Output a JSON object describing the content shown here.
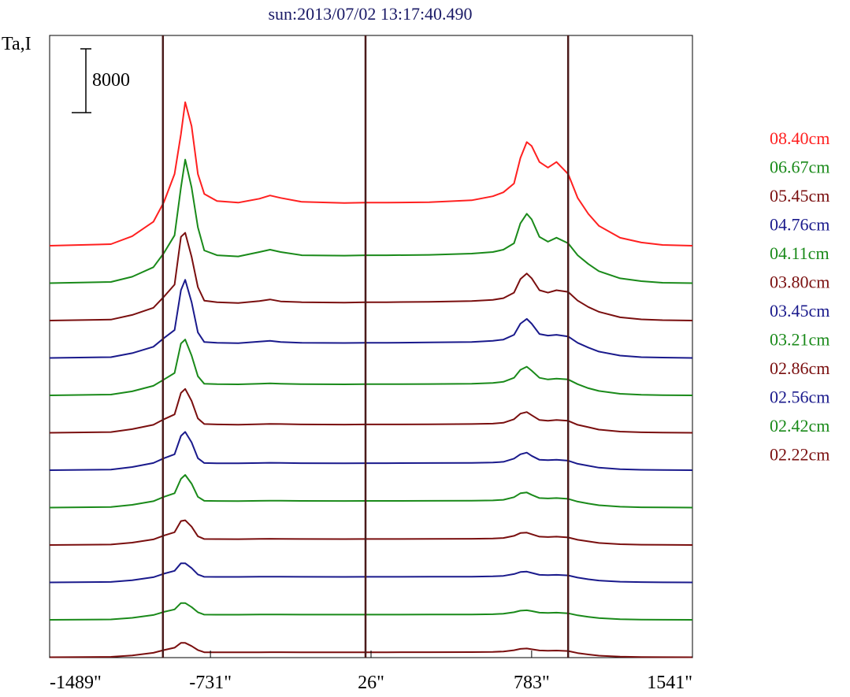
{
  "chart_data": {
    "type": "line",
    "title": "sun:2013/07/02 13:17:40.490",
    "ylabel": "Ta,I",
    "scale_bar_label": "8000",
    "x_ticks": [
      -1489,
      -731,
      26,
      783,
      1541
    ],
    "x_tick_labels": [
      "-1489\"",
      "-731\"",
      "26\"",
      "783\"",
      "1541\""
    ],
    "xlim": [
      -1489,
      1541
    ],
    "vertical_markers": [
      -955,
      0,
      955
    ],
    "grid": false,
    "legend_placement": "right",
    "colors": {
      "red": "#ff2020",
      "green": "#1a8a1a",
      "darkred": "#7a0f0f",
      "navy": "#1a1a8c",
      "marker": "#4a1a1a",
      "title": "#1a1a66"
    },
    "x": [
      -1489,
      -1200,
      -1100,
      -1000,
      -950,
      -900,
      -870,
      -850,
      -820,
      -790,
      -760,
      -700,
      -600,
      -500,
      -450,
      -400,
      -300,
      -100,
      0,
      100,
      300,
      500,
      600,
      650,
      700,
      730,
      760,
      783,
      820,
      860,
      900,
      955,
      1000,
      1050,
      1100,
      1200,
      1300,
      1400,
      1541
    ],
    "series": [
      {
        "name": "08.40cm",
        "color": "red",
        "values": [
          0,
          200,
          1200,
          3000,
          5500,
          9000,
          14000,
          18000,
          15000,
          9000,
          6500,
          5600,
          5400,
          5900,
          6300,
          6000,
          5500,
          5350,
          5400,
          5400,
          5450,
          5700,
          6200,
          6700,
          7800,
          11000,
          13000,
          12500,
          10500,
          9800,
          10500,
          9000,
          6000,
          4000,
          2500,
          1000,
          400,
          100,
          0
        ]
      },
      {
        "name": "06.67cm",
        "color": "green",
        "values": [
          0,
          150,
          800,
          2000,
          3800,
          6000,
          12000,
          15500,
          12000,
          7000,
          4100,
          3500,
          3350,
          3900,
          4200,
          3900,
          3500,
          3450,
          3500,
          3500,
          3550,
          3700,
          3900,
          4200,
          5000,
          7500,
          8700,
          8000,
          5800,
          5200,
          5700,
          5000,
          3500,
          2400,
          1500,
          600,
          250,
          50,
          0
        ]
      },
      {
        "name": "05.45cm",
        "color": "darkred",
        "values": [
          0,
          120,
          700,
          1600,
          3000,
          4500,
          10500,
          11000,
          8000,
          4200,
          2500,
          2300,
          2200,
          2450,
          2650,
          2400,
          2300,
          2250,
          2300,
          2300,
          2350,
          2450,
          2600,
          2800,
          3500,
          5200,
          5900,
          5300,
          3800,
          3500,
          3800,
          3600,
          2500,
          1700,
          1100,
          400,
          150,
          50,
          0
        ]
      },
      {
        "name": "04.76cm",
        "color": "navy",
        "values": [
          0,
          100,
          600,
          1400,
          2500,
          3500,
          8500,
          9800,
          7000,
          3200,
          2000,
          1900,
          1850,
          2050,
          2150,
          2000,
          1900,
          1880,
          1900,
          1900,
          1950,
          2000,
          2150,
          2300,
          2900,
          4300,
          4900,
          4300,
          3000,
          2800,
          2900,
          2700,
          1900,
          1300,
          800,
          300,
          100,
          50,
          0
        ]
      },
      {
        "name": "04.11cm",
        "color": "green",
        "values": [
          0,
          100,
          500,
          1200,
          2000,
          2800,
          6500,
          7000,
          5000,
          2400,
          1450,
          1400,
          1380,
          1450,
          1500,
          1450,
          1400,
          1380,
          1400,
          1400,
          1420,
          1450,
          1550,
          1700,
          2200,
          3200,
          3600,
          3100,
          2200,
          2000,
          2100,
          2000,
          1400,
          900,
          550,
          200,
          80,
          30,
          0
        ]
      },
      {
        "name": "03.80cm",
        "color": "darkred",
        "values": [
          0,
          90,
          450,
          1000,
          1700,
          2300,
          5000,
          5500,
          4000,
          1800,
          1100,
          1050,
          1020,
          1080,
          1120,
          1100,
          1050,
          1030,
          1050,
          1050,
          1070,
          1100,
          1150,
          1250,
          1700,
          2400,
          2600,
          2200,
          1600,
          1500,
          1600,
          1500,
          1000,
          700,
          400,
          150,
          60,
          20,
          0
        ]
      },
      {
        "name": "03.45cm",
        "color": "navy",
        "values": [
          0,
          80,
          400,
          900,
          1500,
          2000,
          4300,
          4800,
          3500,
          1500,
          900,
          870,
          860,
          900,
          930,
          910,
          880,
          870,
          880,
          880,
          900,
          920,
          960,
          1050,
          1450,
          2000,
          2200,
          1800,
          1300,
          1250,
          1300,
          1200,
          800,
          550,
          320,
          120,
          50,
          20,
          0
        ]
      },
      {
        "name": "03.21cm",
        "color": "green",
        "values": [
          0,
          70,
          350,
          800,
          1350,
          1800,
          3600,
          4100,
          3000,
          1350,
          850,
          830,
          820,
          850,
          870,
          860,
          840,
          830,
          840,
          840,
          850,
          870,
          900,
          980,
          1300,
          1800,
          1900,
          1600,
          1200,
          1150,
          1200,
          1100,
          750,
          500,
          300,
          110,
          40,
          15,
          0
        ]
      },
      {
        "name": "02.86cm",
        "color": "darkred",
        "values": [
          0,
          60,
          300,
          700,
          1200,
          1600,
          3000,
          3100,
          2300,
          1100,
          750,
          740,
          730,
          760,
          780,
          770,
          750,
          740,
          750,
          750,
          760,
          780,
          820,
          880,
          1150,
          1500,
          1550,
          1350,
          1050,
          1000,
          1050,
          950,
          650,
          450,
          260,
          100,
          40,
          15,
          0
        ]
      },
      {
        "name": "02.56cm",
        "color": "navy",
        "values": [
          0,
          55,
          270,
          650,
          1100,
          1450,
          2400,
          2400,
          1800,
          1000,
          700,
          690,
          690,
          710,
          720,
          715,
          700,
          695,
          700,
          700,
          710,
          720,
          760,
          820,
          1050,
          1300,
          1350,
          1200,
          950,
          920,
          950,
          880,
          600,
          400,
          240,
          90,
          35,
          10,
          0
        ]
      },
      {
        "name": "02.42cm",
        "color": "green",
        "values": [
          0,
          50,
          250,
          600,
          1000,
          1300,
          2100,
          2100,
          1600,
          950,
          650,
          645,
          640,
          660,
          670,
          665,
          650,
          648,
          650,
          650,
          660,
          670,
          700,
          760,
          950,
          1150,
          1200,
          1100,
          900,
          870,
          900,
          820,
          560,
          380,
          220,
          80,
          30,
          10,
          0
        ]
      },
      {
        "name": "02.22cm",
        "color": "darkred",
        "values": [
          0,
          45,
          220,
          550,
          900,
          1200,
          1800,
          1800,
          1400,
          900,
          620,
          615,
          610,
          625,
          635,
          630,
          620,
          618,
          620,
          620,
          630,
          640,
          670,
          720,
          880,
          1050,
          1100,
          1000,
          850,
          820,
          840,
          780,
          520,
          350,
          200,
          75,
          25,
          10,
          0
        ]
      }
    ]
  }
}
